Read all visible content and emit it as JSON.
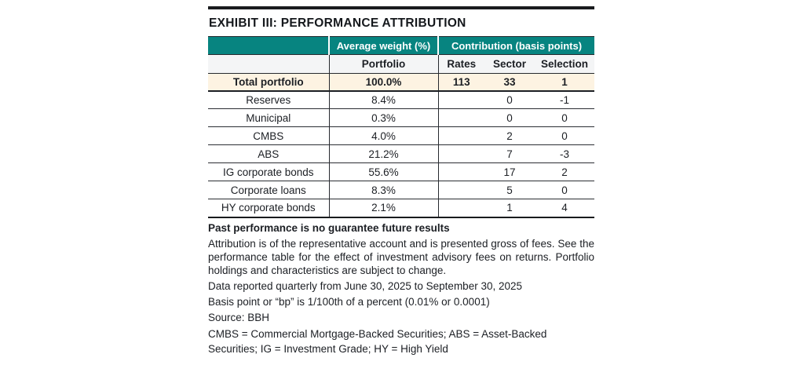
{
  "title": "EXHIBIT III: PERFORMANCE ATTRIBUTION",
  "colors": {
    "header_teal": "#078480",
    "total_row_beige": "#fdf3e2",
    "subheader_gray": "#f4f5f6",
    "border_dark": "#26292e"
  },
  "table": {
    "group_headers": {
      "weight": "Average weight (%)",
      "contribution": "Contribution (basis points)"
    },
    "sub_headers": {
      "portfolio": "Portfolio",
      "rates": "Rates",
      "sector": "Sector",
      "selection": "Selection"
    },
    "total_row": {
      "label": "Total portfolio",
      "portfolio": "100.0%",
      "rates": "113",
      "sector": "33",
      "selection": "1"
    },
    "rows": [
      {
        "label": "Reserves",
        "portfolio": "8.4%",
        "rates": "",
        "sector": "0",
        "selection": "-1"
      },
      {
        "label": "Municipal",
        "portfolio": "0.3%",
        "rates": "",
        "sector": "0",
        "selection": "0"
      },
      {
        "label": "CMBS",
        "portfolio": "4.0%",
        "rates": "",
        "sector": "2",
        "selection": "0"
      },
      {
        "label": "ABS",
        "portfolio": "21.2%",
        "rates": "",
        "sector": "7",
        "selection": "-3"
      },
      {
        "label": "IG corporate bonds",
        "portfolio": "55.6%",
        "rates": "",
        "sector": "17",
        "selection": "2"
      },
      {
        "label": "Corporate loans",
        "portfolio": "8.3%",
        "rates": "",
        "sector": "5",
        "selection": "0"
      },
      {
        "label": "HY corporate bonds",
        "portfolio": "2.1%",
        "rates": "",
        "sector": "1",
        "selection": "4"
      }
    ]
  },
  "footnotes": {
    "disclaimer": "Past performance is no guarantee future results",
    "attribution": "Attribution is of the representative account and is presented gross of fees. See the performance table for the effect of investment advisory fees on returns. Portfolio holdings and characteristics are subject to change.",
    "data_period": "Data reported quarterly from June 30, 2025 to September 30, 2025",
    "basis_point": "Basis point or “bp” is 1/100th of a percent (0.01% or 0.0001)",
    "source": "Source: BBH",
    "abbreviations": "CMBS = Commercial Mortgage-Backed Securities; ABS = Asset-Backed Securities; IG = Investment Grade; HY = High Yield"
  }
}
